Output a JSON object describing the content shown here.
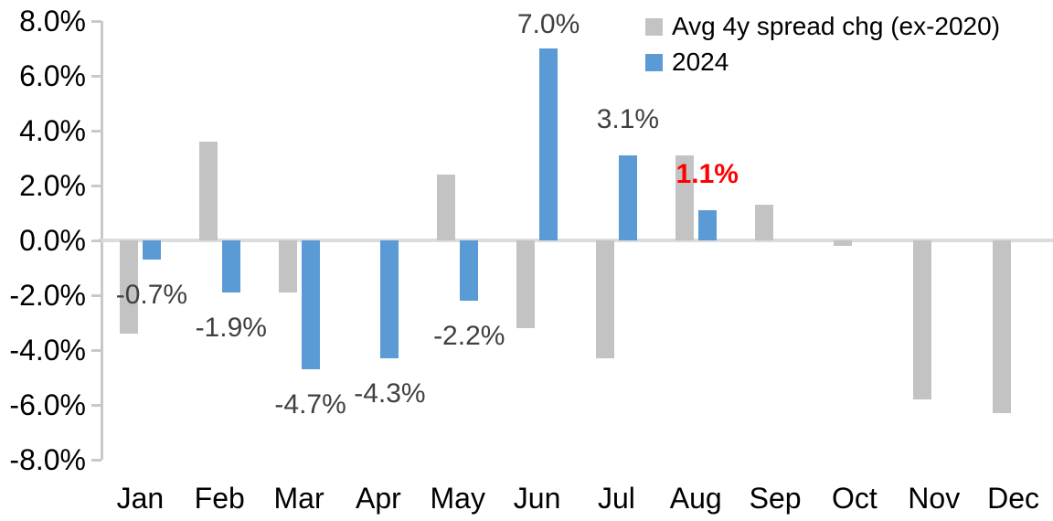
{
  "chart_data": {
    "type": "bar",
    "title": "",
    "xlabel": "",
    "ylabel": "",
    "categories": [
      "Jan",
      "Feb",
      "Mar",
      "Apr",
      "May",
      "Jun",
      "Jul",
      "Aug",
      "Sep",
      "Oct",
      "Nov",
      "Dec"
    ],
    "series": [
      {
        "name": "Avg 4y spread chg (ex-2020)",
        "color": "#C3C3C3",
        "values": [
          -3.4,
          3.6,
          -1.9,
          0,
          2.4,
          -3.2,
          -4.3,
          3.1,
          1.3,
          -0.2,
          -5.8,
          -6.3
        ]
      },
      {
        "name": "2024",
        "color": "#5B9BD5",
        "values": [
          -0.7,
          -1.9,
          -4.7,
          -4.3,
          -2.2,
          7.0,
          3.1,
          1.1,
          null,
          null,
          null,
          null
        ],
        "data_labels": [
          {
            "text": "-0.7%"
          },
          {
            "text": "-1.9%"
          },
          {
            "text": "-4.7%"
          },
          {
            "text": "-4.3%"
          },
          {
            "text": "-2.2%"
          },
          {
            "text": "7.0%"
          },
          {
            "text": "3.1%"
          },
          {
            "text": "1.1%",
            "color": "#FF0000",
            "bold": true
          },
          null,
          null,
          null,
          null
        ]
      }
    ],
    "ylim": [
      -8,
      8
    ],
    "ytick_values": [
      8,
      6,
      4,
      2,
      0,
      -2,
      -4,
      -6,
      -8
    ],
    "ytick_labels": [
      "8.0%",
      "6.0%",
      "4.0%",
      "2.0%",
      "0.0%",
      "-2.0%",
      "-4.0%",
      "-6.0%",
      "-8.0%"
    ],
    "grid": "zero-line-only",
    "legend_position": "top-right",
    "axis_color": "#C9C9C9",
    "zero_line_color": "#DCDCDC",
    "data_label_color": "#404040",
    "highlight_label_color": "#FF0000"
  }
}
